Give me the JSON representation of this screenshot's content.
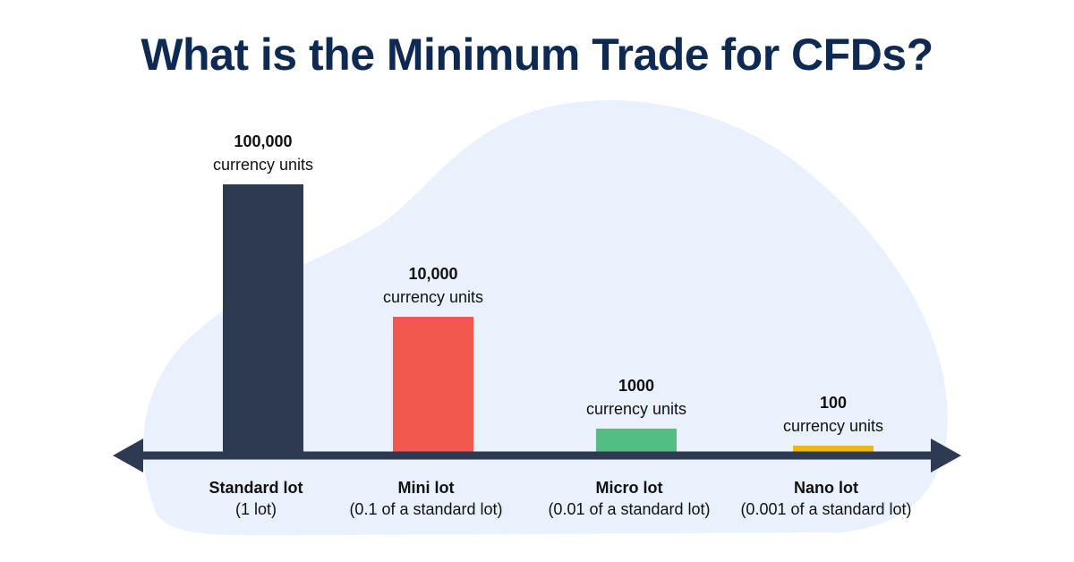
{
  "title": "What is the Minimum Trade for CFDs?",
  "chart_data": {
    "type": "bar",
    "title": "What is the Minimum Trade for CFDs?",
    "categories": [
      "Standard lot",
      "Mini lot",
      "Micro lot",
      "Nano lot"
    ],
    "category_sublabels": [
      "(1 lot)",
      "(0.1 of a standard lot)",
      "(0.01 of a standard lot)",
      "(0.001 of a standard lot)"
    ],
    "values": [
      100000,
      10000,
      1000,
      100
    ],
    "value_labels": [
      "100,000",
      "10,000",
      "1000",
      "100"
    ],
    "unit_label": "currency units",
    "colors": [
      "#2d3a52",
      "#f2574e",
      "#52bd83",
      "#f5b50f"
    ],
    "axis_color": "#2d3a52",
    "background_blob_color": "#e9f2fc",
    "grid": false,
    "legend": "none",
    "scale": "non-linear (illustrative)"
  }
}
